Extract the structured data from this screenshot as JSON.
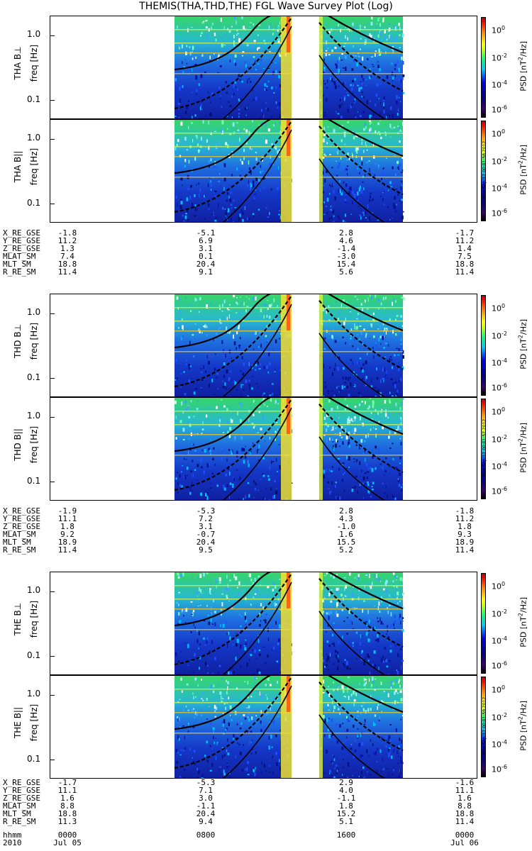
{
  "title": "THEMIS(THA,THD,THE) FGL Wave Survey Plot (Log)",
  "ylabel_freq": "freq [Hz]",
  "yticks": [
    "1.0",
    "0.1"
  ],
  "colorbar": {
    "label": "PSD [nT",
    "label_unit_sup": "2",
    "label_tail": "/Hz]",
    "ticks": [
      "10",
      "10",
      "10",
      "10"
    ],
    "tick_exps": [
      "0",
      "-2",
      "-4",
      "-6"
    ]
  },
  "panels": [
    {
      "name": "THA B⊥",
      "stamp": ""
    },
    {
      "name": "THA B||",
      "stamp": "Mon Sep 17 00:01:56 2012"
    },
    {
      "name": "THD B⊥",
      "stamp": ""
    },
    {
      "name": "THD B||",
      "stamp": "Mon Sep 17 00:01:57 2012"
    },
    {
      "name": "THE B⊥",
      "stamp": ""
    },
    {
      "name": "THE B||",
      "stamp": "Mon Sep 17 00:01:59 2012"
    }
  ],
  "ephemeris": [
    {
      "labels": [
        "X_RE_GSE",
        "Y_RE_GSE",
        "Z_RE_GSE",
        "MLAT_SM",
        "MLT_SM",
        "R_RE_SM"
      ],
      "cols": [
        [
          "-1.8",
          "11.2",
          "1.3",
          "7.4",
          "18.8",
          "11.4"
        ],
        [
          "-5.1",
          "6.9",
          "3.1",
          "0.1",
          "20.4",
          "9.1"
        ],
        [
          "2.8",
          "4.6",
          "-1.4",
          "-3.0",
          "15.4",
          "5.6"
        ],
        [
          "-1.7",
          "11.2",
          "1.4",
          "7.5",
          "18.8",
          "11.4"
        ]
      ]
    },
    {
      "labels": [
        "X_RE_GSE",
        "Y_RE_GSE",
        "Z_RE_GSE",
        "MLAT_SM",
        "MLT_SM",
        "R_RE_SM"
      ],
      "cols": [
        [
          "-1.9",
          "11.1",
          "1.8",
          "9.2",
          "18.9",
          "11.4"
        ],
        [
          "-5.3",
          "7.2",
          "3.1",
          "-0.7",
          "20.4",
          "9.5"
        ],
        [
          "2.8",
          "4.3",
          "-1.0",
          "1.6",
          "15.5",
          "5.2"
        ],
        [
          "-1.8",
          "11.2",
          "1.8",
          "9.3",
          "18.9",
          "11.4"
        ]
      ]
    },
    {
      "labels": [
        "X_RE_GSE",
        "Y_RE_GSE",
        "Z_RE_GSE",
        "MLAT_SM",
        "MLT_SM",
        "R_RE_SM"
      ],
      "cols": [
        [
          "-1.7",
          "11.1",
          "1.6",
          "8.8",
          "18.8",
          "11.3"
        ],
        [
          "-5.3",
          "7.1",
          "3.0",
          "-1.1",
          "20.4",
          "9.4"
        ],
        [
          "2.9",
          "4.0",
          "-1.1",
          "1.8",
          "15.2",
          "5.1"
        ],
        [
          "-1.6",
          "11.1",
          "1.6",
          "8.8",
          "18.8",
          "11.4"
        ]
      ]
    }
  ],
  "time_axis": {
    "row1_label": "hhmm",
    "row2_label": "2010",
    "hhmm": [
      "0000",
      "0800",
      "1600",
      "0000"
    ],
    "dates": [
      "Jul 05",
      "",
      "",
      "Jul 06"
    ]
  },
  "chart_data": {
    "type": "heatmap",
    "x_unit": "hhmm",
    "x_ticks": [
      "0000",
      "0800",
      "1600",
      "0000"
    ],
    "y_scale": "log",
    "ylim": [
      0.05,
      2.0
    ],
    "color_scale": "log",
    "data_intervals_hhmm": [
      [
        "0600",
        "1205"
      ],
      [
        "1345",
        "1820"
      ]
    ],
    "overlay_lines": [
      "solid",
      "dashed",
      "dashed"
    ]
  }
}
